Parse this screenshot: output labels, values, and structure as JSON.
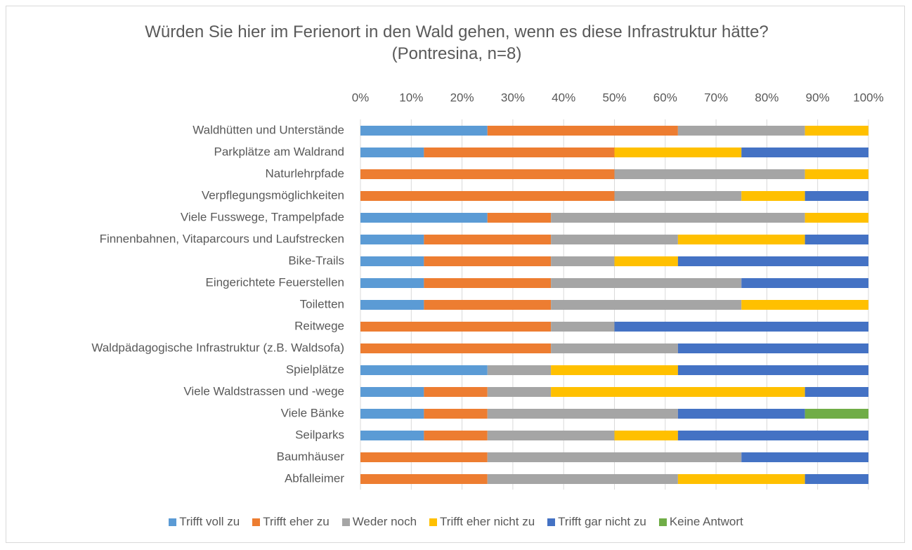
{
  "chart_data": {
    "type": "stacked_bar_horizontal",
    "title": "Würden Sie hier im Ferienort in den Wald gehen, wenn es diese Infrastruktur hätte? (Pontresina, n=8)",
    "categories": [
      "Waldhütten und Unterstände",
      "Parkplätze am Waldrand",
      "Naturlehrpfade",
      "Verpflegungsmöglichkeiten",
      "Viele Fusswege, Trampelpfade",
      "Finnenbahnen, Vitaparcours und Laufstrecken",
      "Bike-Trails",
      "Eingerichtete Feuerstellen",
      "Toiletten",
      "Reitwege",
      "Waldpädagogische Infrastruktur (z.B. Waldsofa)",
      "Spielplätze",
      "Viele Waldstrassen und -wege",
      "Viele Bänke",
      "Seilparks",
      "Baumhäuser",
      "Abfalleimer"
    ],
    "series": [
      {
        "name": "Trifft voll zu",
        "color": "#5b9bd5",
        "values": [
          25,
          12.5,
          0,
          0,
          25,
          12.5,
          12.5,
          12.5,
          12.5,
          0,
          0,
          25,
          12.5,
          12.5,
          12.5,
          0,
          0
        ]
      },
      {
        "name": "Trifft eher zu",
        "color": "#ed7d31",
        "values": [
          37.5,
          37.5,
          50,
          50,
          12.5,
          25,
          25,
          25,
          25,
          37.5,
          37.5,
          0,
          12.5,
          12.5,
          12.5,
          25,
          25
        ]
      },
      {
        "name": "Weder noch",
        "color": "#a5a5a5",
        "values": [
          25,
          0,
          37.5,
          25,
          50,
          25,
          12.5,
          37.5,
          37.5,
          12.5,
          25,
          12.5,
          12.5,
          37.5,
          25,
          50,
          37.5
        ]
      },
      {
        "name": "Trifft eher nicht zu",
        "color": "#ffc000",
        "values": [
          12.5,
          25,
          12.5,
          12.5,
          12.5,
          25,
          12.5,
          0,
          25,
          0,
          0,
          25,
          50,
          0,
          12.5,
          0,
          25
        ]
      },
      {
        "name": "Trifft gar nicht zu",
        "color": "#4472c4",
        "values": [
          0,
          25,
          0,
          12.5,
          0,
          12.5,
          37.5,
          25,
          0,
          50,
          37.5,
          37.5,
          12.5,
          25,
          37.5,
          25,
          12.5
        ]
      },
      {
        "name": "Keine Antwort",
        "color": "#70ad47",
        "values": [
          0,
          0,
          0,
          0,
          0,
          0,
          0,
          0,
          0,
          0,
          0,
          0,
          0,
          12.5,
          0,
          0,
          0
        ]
      }
    ],
    "xlim": [
      0,
      100
    ],
    "xticks": [
      {
        "value": 0,
        "label": "0%"
      },
      {
        "value": 10,
        "label": "10%"
      },
      {
        "value": 20,
        "label": "20%"
      },
      {
        "value": 30,
        "label": "30%"
      },
      {
        "value": 40,
        "label": "40%"
      },
      {
        "value": 50,
        "label": "50%"
      },
      {
        "value": 60,
        "label": "60%"
      },
      {
        "value": 70,
        "label": "70%"
      },
      {
        "value": 80,
        "label": "80%"
      },
      {
        "value": 90,
        "label": "90%"
      },
      {
        "value": 100,
        "label": "100%"
      }
    ],
    "grid": true,
    "legend": "bottom"
  }
}
